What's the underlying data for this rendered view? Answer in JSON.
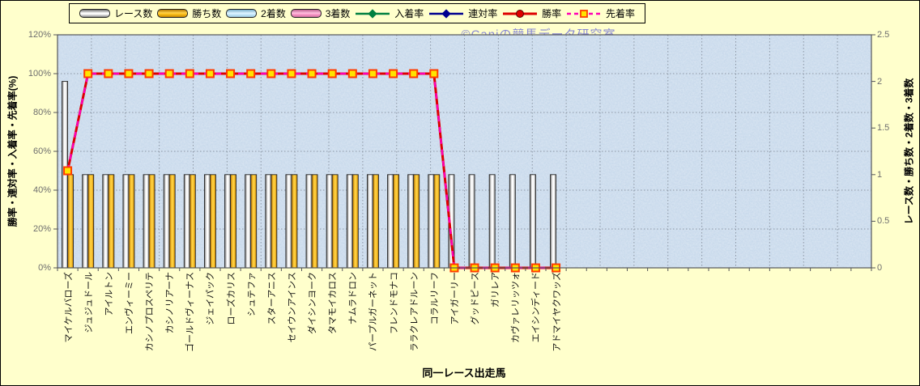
{
  "watermark": "©Caniの競馬データ研究室",
  "chart_data": {
    "type": "bar",
    "subtype": "combo-bar-line",
    "title": "",
    "xlabel": "同一レース出走馬",
    "legend_position": "top",
    "grid": true,
    "categories": [
      "マイケルバローズ",
      "ジュジュドール",
      "アイルトン",
      "エンヴィーミー",
      "カシノプロスペリテ",
      "カシノリアーナ",
      "ゴールドヴィーナス",
      "ジェイパック",
      "ローズカリス",
      "シュテファ",
      "スターアニス",
      "セイウンアインス",
      "ダイシンヨーク",
      "タマモイカロス",
      "ナムラドロン",
      "パープルガーネット",
      "フレンドモナコ",
      "ララクレアドルーン",
      "コラルリーフ",
      "アイガーリー",
      "グッドピース",
      "ガリレア",
      "カヴァレリッツォ",
      "エイシンディード",
      "アドマイヤクワッズ"
    ],
    "axes": {
      "left": {
        "title": "勝率・連対率・入着率・先着率(%)",
        "min": 0,
        "max": 120,
        "tick_step": 20,
        "ticks": [
          "0%",
          "20%",
          "40%",
          "60%",
          "80%",
          "100%",
          "120%"
        ]
      },
      "right": {
        "title": "レース数・勝ち数・2着数・3着数",
        "min": 0,
        "max": 2.5,
        "tick_step": 0.5,
        "ticks": [
          "0",
          "0.5",
          "1",
          "1.5",
          "2",
          "2.5"
        ]
      }
    },
    "series": [
      {
        "name": "レース数",
        "kind": "bar",
        "axis": "right",
        "swatch": "race",
        "values": [
          2,
          1,
          1,
          1,
          1,
          1,
          1,
          1,
          1,
          1,
          1,
          1,
          1,
          1,
          1,
          1,
          1,
          1,
          1,
          1,
          1,
          1,
          1,
          1,
          1
        ]
      },
      {
        "name": "勝ち数",
        "kind": "bar",
        "axis": "right",
        "swatch": "win",
        "values": [
          1,
          1,
          1,
          1,
          1,
          1,
          1,
          1,
          1,
          1,
          1,
          1,
          1,
          1,
          1,
          1,
          1,
          1,
          1,
          0,
          0,
          0,
          0,
          0,
          0
        ]
      },
      {
        "name": "2着数",
        "kind": "bar",
        "axis": "right",
        "swatch": "second",
        "values": [
          0,
          0,
          0,
          0,
          0,
          0,
          0,
          0,
          0,
          0,
          0,
          0,
          0,
          0,
          0,
          0,
          0,
          0,
          0,
          0,
          0,
          0,
          0,
          0,
          0
        ]
      },
      {
        "name": "3着数",
        "kind": "bar",
        "axis": "right",
        "swatch": "third",
        "values": [
          0,
          0,
          0,
          0,
          0,
          0,
          0,
          0,
          0,
          0,
          0,
          0,
          0,
          0,
          0,
          0,
          0,
          0,
          0,
          0,
          0,
          0,
          0,
          0,
          0
        ]
      },
      {
        "name": "入着率",
        "kind": "line",
        "axis": "left",
        "swatch": "nyuchaku",
        "marker": "diamond",
        "values": [
          50,
          100,
          100,
          100,
          100,
          100,
          100,
          100,
          100,
          100,
          100,
          100,
          100,
          100,
          100,
          100,
          100,
          100,
          100,
          0,
          0,
          0,
          0,
          0,
          0
        ]
      },
      {
        "name": "連対率",
        "kind": "line",
        "axis": "left",
        "swatch": "rentai",
        "marker": "diamond",
        "values": [
          50,
          100,
          100,
          100,
          100,
          100,
          100,
          100,
          100,
          100,
          100,
          100,
          100,
          100,
          100,
          100,
          100,
          100,
          100,
          0,
          0,
          0,
          0,
          0,
          0
        ]
      },
      {
        "name": "勝率",
        "kind": "line",
        "axis": "left",
        "swatch": "shoritsu",
        "marker": "circle",
        "values": [
          50,
          100,
          100,
          100,
          100,
          100,
          100,
          100,
          100,
          100,
          100,
          100,
          100,
          100,
          100,
          100,
          100,
          100,
          100,
          0,
          0,
          0,
          0,
          0,
          0
        ]
      },
      {
        "name": "先着率",
        "kind": "line",
        "axis": "left",
        "swatch": "senchaku",
        "marker": "square",
        "dashed": true,
        "values": [
          50,
          100,
          100,
          100,
          100,
          100,
          100,
          100,
          100,
          100,
          100,
          100,
          100,
          100,
          100,
          100,
          100,
          100,
          100,
          0,
          0,
          0,
          0,
          0,
          0
        ]
      }
    ],
    "colors": {
      "background": "#ffffcc",
      "plot_fill": "#c9daec",
      "grid": "#8c96a4",
      "plot_border": "#55565a",
      "race_bar": [
        "#787878",
        "#ffffff",
        "#8f8f8f"
      ],
      "win_bar": [
        "#b87300",
        "#ffcf3d",
        "#c98200"
      ],
      "second_bar": "#cdeeff",
      "third_bar": "#ff9fce",
      "nyuchaku": "#008040",
      "rentai": "#000090",
      "shoritsu": "#dd0000",
      "senchaku": "#ff00b4",
      "marker_fill": "#ffe400",
      "marker_stroke": "#ff3c00",
      "watermark": "#7070d6"
    }
  }
}
